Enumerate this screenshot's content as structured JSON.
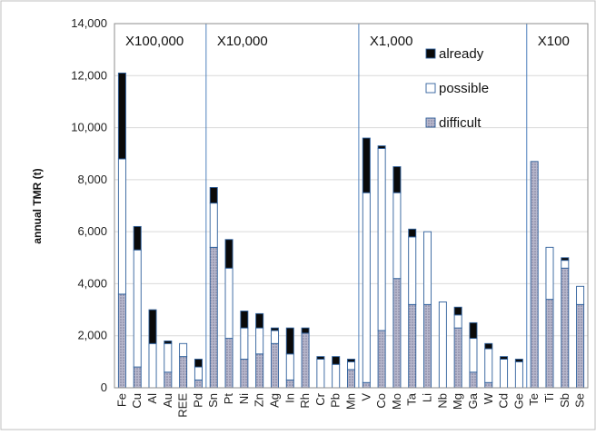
{
  "chart_data": {
    "type": "bar",
    "stacked": true,
    "ylabel": "annual TMR (t)",
    "ylim": [
      0,
      14000
    ],
    "yticks": [
      0,
      2000,
      4000,
      6000,
      8000,
      10000,
      12000,
      14000
    ],
    "ytick_labels": [
      "0",
      "2,000",
      "4,000",
      "6,000",
      "8,000",
      "10,000",
      "12,000",
      "14,000"
    ],
    "grid": true,
    "legend_position": "upper-right",
    "categories": [
      "Fe",
      "Cu",
      "Al",
      "Au",
      "REE",
      "Pd",
      "Sn",
      "Pt",
      "Ni",
      "Zn",
      "Ag",
      "In",
      "Rh",
      "Cr",
      "Pb",
      "Mn",
      "V",
      "Co",
      "Mo",
      "Ta",
      "Li",
      "Nb",
      "Mg",
      "Ga",
      "W",
      "Cd",
      "Ge",
      "Te",
      "Ti",
      "Sb",
      "Se"
    ],
    "groups": [
      {
        "label": "X100,000",
        "categories": [
          "Fe",
          "Cu",
          "Al",
          "Au",
          "REE",
          "Pd"
        ]
      },
      {
        "label": "X10,000",
        "categories": [
          "Sn",
          "Pt",
          "Ni",
          "Zn",
          "Ag",
          "In",
          "Rh",
          "Cr",
          "Pb",
          "Mn"
        ]
      },
      {
        "label": "X1,000",
        "categories": [
          "V",
          "Co",
          "Mo",
          "Ta",
          "Li",
          "Nb",
          "Mg",
          "Ga",
          "W",
          "Cd",
          "Ge"
        ]
      },
      {
        "label": "X100",
        "categories": [
          "Te",
          "Ti",
          "Sb",
          "Se"
        ]
      }
    ],
    "series": [
      {
        "name": "difficult",
        "color": "#a9a9c2",
        "pattern": "dotted",
        "values": [
          3600,
          800,
          0,
          600,
          1200,
          300,
          5400,
          1900,
          1100,
          1300,
          1700,
          300,
          2100,
          0,
          0,
          700,
          200,
          2200,
          4200,
          3200,
          3200,
          0,
          2300,
          600,
          200,
          0,
          0,
          8700,
          3400,
          4600,
          3200
        ]
      },
      {
        "name": "possible",
        "color": "#ffffff",
        "values": [
          5200,
          4500,
          1700,
          1100,
          500,
          500,
          1700,
          2700,
          1200,
          1000,
          500,
          1000,
          0,
          1100,
          900,
          300,
          7300,
          7000,
          3300,
          2600,
          2800,
          3300,
          500,
          1300,
          1300,
          1100,
          1000,
          0,
          2000,
          300,
          700
        ]
      },
      {
        "name": "already",
        "color": "#0a0a0a",
        "values": [
          3300,
          900,
          1300,
          100,
          0,
          300,
          600,
          1100,
          650,
          550,
          100,
          1000,
          200,
          100,
          300,
          100,
          2100,
          100,
          1000,
          300,
          0,
          0,
          300,
          600,
          200,
          100,
          100,
          0,
          0,
          100,
          0
        ]
      }
    ]
  }
}
